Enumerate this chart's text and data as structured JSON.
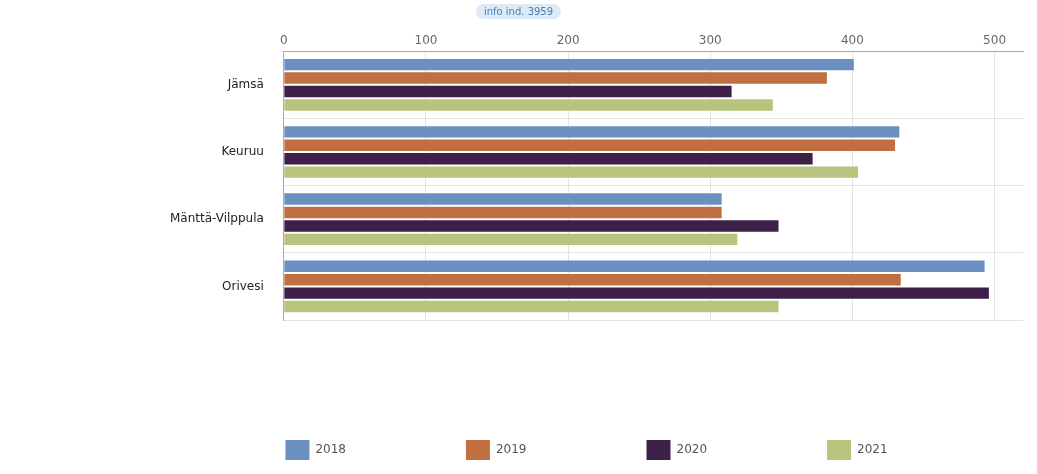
{
  "chart_data": {
    "type": "bar",
    "orientation": "horizontal",
    "subtitle": "info ind. 3959",
    "categories": [
      "Jämsä",
      "Keuruu",
      "Mänttä-Vilppula",
      "Orivesi"
    ],
    "series": [
      {
        "name": "2018",
        "color": "#6a8fc0",
        "values": [
          401,
          433,
          308,
          493
        ]
      },
      {
        "name": "2019",
        "color": "#c07040",
        "values": [
          382,
          430,
          308,
          434
        ]
      },
      {
        "name": "2020",
        "color": "#3e1f48",
        "values": [
          315,
          372,
          348,
          496
        ]
      },
      {
        "name": "2021",
        "color": "#b8c47e",
        "values": [
          344,
          404,
          319,
          348
        ]
      }
    ],
    "xlim": [
      0,
      520
    ],
    "xticks": [
      0,
      100,
      200,
      300,
      400,
      500
    ],
    "grid": true,
    "legend": "bottom"
  }
}
